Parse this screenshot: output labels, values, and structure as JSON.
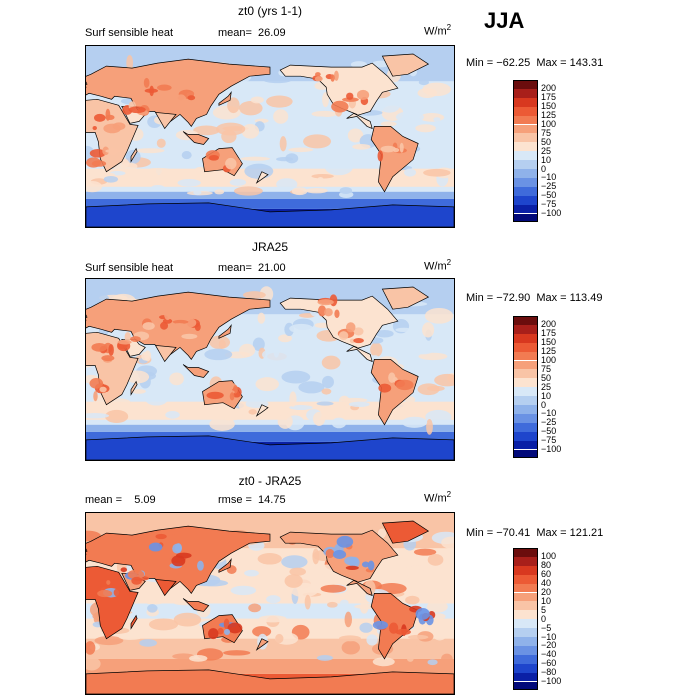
{
  "season": "JJA",
  "chart_data": [
    {
      "type": "heatmap",
      "title": "zt0 (yrs 1-1)",
      "left_label": "Surf sensible heat",
      "stat_text": "mean=  26.09",
      "units": "W/m",
      "units_exp": "2",
      "min_max_text": "Min = −62.25  Max = 143.31",
      "levels": [
        "200",
        "175",
        "150",
        "125",
        "100",
        "75",
        "50",
        "25",
        "10",
        "0",
        "−10",
        "−25",
        "−50",
        "−75",
        "−100"
      ],
      "colors": [
        "#6b0d0d",
        "#a81f1a",
        "#d8381f",
        "#ec5a35",
        "#f27b52",
        "#f6a07a",
        "#f9c4a6",
        "#fce3d0",
        "#d8e8f7",
        "#b5cff0",
        "#8fb2ea",
        "#6a92e4",
        "#3f6bdb",
        "#1e45cc",
        "#0a20a6",
        "#020a7a"
      ]
    },
    {
      "type": "heatmap",
      "title": "JRA25",
      "left_label": "Surf sensible heat",
      "stat_text": "mean=  21.00",
      "units": "W/m",
      "units_exp": "2",
      "min_max_text": "Min = −72.90  Max = 113.49",
      "levels": [
        "200",
        "175",
        "150",
        "125",
        "100",
        "75",
        "50",
        "25",
        "10",
        "0",
        "−10",
        "−25",
        "−50",
        "−75",
        "−100"
      ],
      "colors": [
        "#6b0d0d",
        "#a81f1a",
        "#d8381f",
        "#ec5a35",
        "#f27b52",
        "#f6a07a",
        "#f9c4a6",
        "#fce3d0",
        "#d8e8f7",
        "#b5cff0",
        "#8fb2ea",
        "#6a92e4",
        "#3f6bdb",
        "#1e45cc",
        "#0a20a6",
        "#020a7a"
      ]
    },
    {
      "type": "heatmap",
      "title": "zt0 - JRA25",
      "left_label": "mean =    5.09",
      "stat_text": "rmse =  14.75",
      "units": "W/m",
      "units_exp": "2",
      "min_max_text": "Min = −70.41  Max = 121.21",
      "levels": [
        "100",
        "80",
        "60",
        "40",
        "20",
        "10",
        "5",
        "0",
        "−5",
        "−10",
        "−20",
        "−40",
        "−60",
        "−80",
        "−100"
      ],
      "colors": [
        "#6b0d0d",
        "#a81f1a",
        "#d8381f",
        "#ec5a35",
        "#f27b52",
        "#f6a07a",
        "#f9c4a6",
        "#fce3d0",
        "#d8e8f7",
        "#b5cff0",
        "#8fb2ea",
        "#6a92e4",
        "#3f6bdb",
        "#1e45cc",
        "#0a20a6",
        "#020a7a"
      ]
    }
  ]
}
